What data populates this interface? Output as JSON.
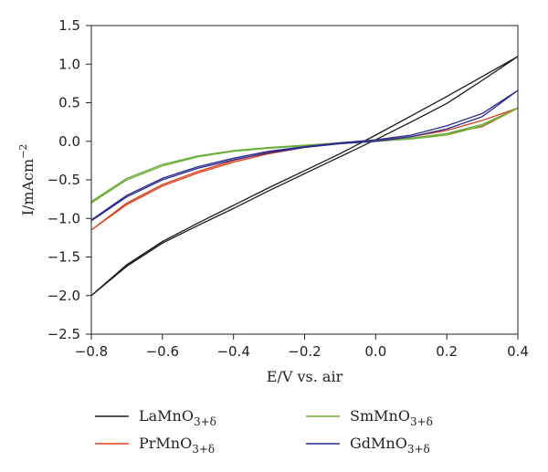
{
  "chart_data": {
    "type": "line",
    "title": "",
    "xlabel": "E/V vs. air",
    "ylabel": {
      "main": "I/mAcm",
      "sup": "−2"
    },
    "xlim": [
      -0.8,
      0.4
    ],
    "ylim": [
      -2.5,
      1.5
    ],
    "xticks": [
      -0.8,
      -0.6,
      -0.4,
      -0.2,
      0.0,
      0.2,
      0.4
    ],
    "xtick_labels": [
      "−0.8",
      "−0.6",
      "−0.4",
      "−0.2",
      "0.0",
      "0.2",
      "0.4"
    ],
    "yticks": [
      -2.5,
      -2.0,
      -1.5,
      -1.0,
      -0.5,
      0.0,
      0.5,
      1.0,
      1.5
    ],
    "ytick_labels": [
      "−2.5",
      "−2.0",
      "−1.5",
      "−1.0",
      "−0.5",
      "0.0",
      "0.5",
      "1.0",
      "1.5"
    ],
    "grid": false,
    "legend_position": "bottom",
    "series": [
      {
        "name": "LaMnO",
        "sub": "3+δ",
        "color": "#1a1a1a",
        "x": [
          -0.8,
          -0.7,
          -0.6,
          -0.5,
          -0.4,
          -0.3,
          -0.2,
          -0.1,
          0.0,
          0.1,
          0.2,
          0.3,
          0.4,
          0.3,
          0.2,
          0.1,
          0.0,
          -0.1,
          -0.2,
          -0.3,
          -0.4,
          -0.5,
          -0.6,
          -0.7,
          -0.8
        ],
        "y": [
          -2.0,
          -1.62,
          -1.32,
          -1.09,
          -0.87,
          -0.64,
          -0.42,
          -0.2,
          0.02,
          0.25,
          0.49,
          0.79,
          1.1,
          0.84,
          0.58,
          0.33,
          0.08,
          -0.16,
          -0.38,
          -0.6,
          -0.83,
          -1.06,
          -1.3,
          -1.6,
          -2.0
        ]
      },
      {
        "name": "PrMnO",
        "sub": "3+δ",
        "color": "#d9401c",
        "x": [
          -0.8,
          -0.7,
          -0.6,
          -0.5,
          -0.4,
          -0.3,
          -0.2,
          -0.1,
          0.0,
          0.1,
          0.2,
          0.3,
          0.4,
          0.3,
          0.2,
          0.1,
          0.0,
          -0.1,
          -0.2,
          -0.3,
          -0.4,
          -0.5,
          -0.6,
          -0.7,
          -0.8
        ],
        "y": [
          -1.15,
          -0.82,
          -0.58,
          -0.41,
          -0.27,
          -0.16,
          -0.08,
          -0.03,
          0.0,
          0.04,
          0.1,
          0.19,
          0.43,
          0.27,
          0.14,
          0.06,
          0.01,
          -0.02,
          -0.07,
          -0.14,
          -0.25,
          -0.39,
          -0.56,
          -0.8,
          -1.15
        ]
      },
      {
        "name": "SmMnO",
        "sub": "3+δ",
        "color": "#6aae3a",
        "x": [
          -0.8,
          -0.7,
          -0.6,
          -0.5,
          -0.4,
          -0.3,
          -0.2,
          -0.1,
          0.0,
          0.1,
          0.2,
          0.3,
          0.4,
          0.3,
          0.2,
          0.1,
          0.0,
          -0.1,
          -0.2,
          -0.3,
          -0.4,
          -0.5,
          -0.6,
          -0.7,
          -0.8
        ],
        "y": [
          -0.8,
          -0.5,
          -0.32,
          -0.2,
          -0.13,
          -0.09,
          -0.06,
          -0.03,
          0.0,
          0.03,
          0.08,
          0.2,
          0.43,
          0.22,
          0.1,
          0.04,
          0.01,
          -0.02,
          -0.05,
          -0.08,
          -0.12,
          -0.19,
          -0.3,
          -0.48,
          -0.78
        ]
      },
      {
        "name": "GdMnO",
        "sub": "3+δ",
        "color": "#2a2a8f",
        "x": [
          -0.8,
          -0.7,
          -0.6,
          -0.5,
          -0.4,
          -0.3,
          -0.2,
          -0.1,
          0.0,
          0.1,
          0.2,
          0.3,
          0.4,
          0.3,
          0.2,
          0.1,
          0.0,
          -0.1,
          -0.2,
          -0.3,
          -0.4,
          -0.5,
          -0.6,
          -0.7,
          -0.8
        ],
        "y": [
          -1.03,
          -0.72,
          -0.5,
          -0.35,
          -0.24,
          -0.15,
          -0.08,
          -0.03,
          0.0,
          0.06,
          0.16,
          0.32,
          0.66,
          0.36,
          0.2,
          0.08,
          0.02,
          -0.02,
          -0.07,
          -0.13,
          -0.22,
          -0.33,
          -0.48,
          -0.7,
          -1.02
        ]
      }
    ]
  }
}
